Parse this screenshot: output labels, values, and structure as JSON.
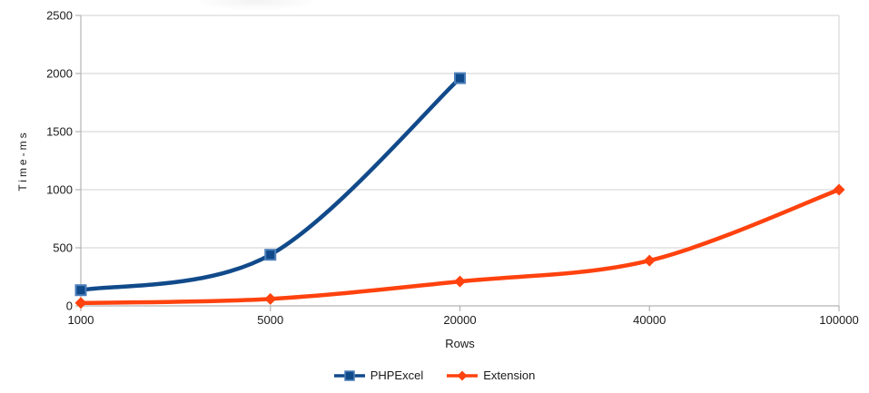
{
  "chart_data": {
    "type": "line",
    "title": "",
    "categories": [
      "1000",
      "5000",
      "20000",
      "40000",
      "100000"
    ],
    "series": [
      {
        "name": "PHPExcel",
        "color": "#114a8a",
        "marker": "square",
        "marker_edge": "#4d7fba",
        "values": [
          135,
          440,
          1960,
          null,
          null
        ]
      },
      {
        "name": "Extension",
        "color": "#ff420e",
        "marker": "diamond",
        "marker_edge": "#ff420e",
        "values": [
          25,
          60,
          210,
          390,
          1000
        ]
      }
    ],
    "xlabel": "Rows",
    "ylabel": "Time-ms",
    "ylim": [
      0,
      2500
    ],
    "yticks": [
      0,
      500,
      1000,
      1500,
      2000,
      2500
    ],
    "grid": "horizontal-only",
    "gridline_color": "#d9d9d9",
    "axis_color": "#b3b3b3",
    "text_color": "#1a1a1a",
    "legend_position": "bottom-center",
    "smooth_lines": true,
    "background": "#ffffff"
  }
}
